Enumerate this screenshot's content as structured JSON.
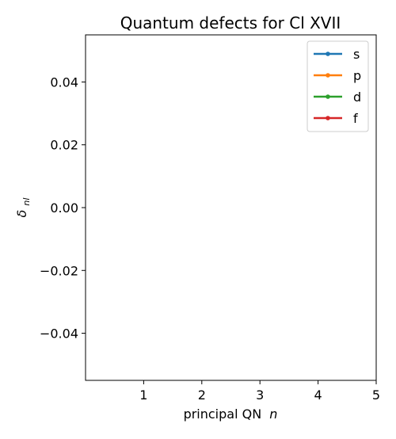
{
  "chart_data": {
    "type": "line",
    "title": "Quantum defects for Cl XVII",
    "xlabel": "principal QN",
    "xlabel_var": "n",
    "ylabel_base": "δ",
    "ylabel_sub": "nl",
    "xlim": [
      0,
      5
    ],
    "ylim": [
      -0.055,
      0.055
    ],
    "xticks": [
      {
        "value": 1,
        "label": "1"
      },
      {
        "value": 2,
        "label": "2"
      },
      {
        "value": 3,
        "label": "3"
      },
      {
        "value": 4,
        "label": "4"
      },
      {
        "value": 5,
        "label": "5"
      }
    ],
    "yticks": [
      {
        "value": 0.04,
        "label": "0.04"
      },
      {
        "value": 0.02,
        "label": "0.02"
      },
      {
        "value": 0.0,
        "label": "0.00"
      },
      {
        "value": -0.02,
        "label": "−0.02"
      },
      {
        "value": -0.04,
        "label": "−0.04"
      }
    ],
    "grid": false,
    "legend_position": "top-right",
    "series": [
      {
        "name": "s",
        "color": "#1f77b4",
        "x": [],
        "y": []
      },
      {
        "name": "p",
        "color": "#ff7f0e",
        "x": [],
        "y": []
      },
      {
        "name": "d",
        "color": "#2ca02c",
        "x": [],
        "y": []
      },
      {
        "name": "f",
        "color": "#d62728",
        "x": [],
        "y": []
      }
    ]
  }
}
